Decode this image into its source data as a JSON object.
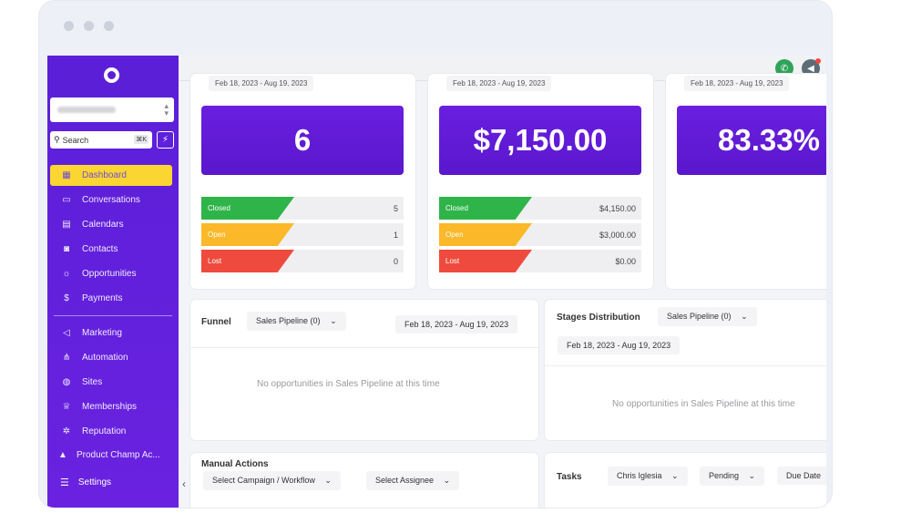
{
  "sidebar": {
    "search_label": "Search",
    "search_shortcut": "⌘K",
    "items_top": [
      {
        "label": "Dashboard",
        "icon": "dashboard-icon",
        "active": true
      },
      {
        "label": "Conversations",
        "icon": "chat-icon"
      },
      {
        "label": "Calendars",
        "icon": "calendar-icon"
      },
      {
        "label": "Contacts",
        "icon": "contacts-icon"
      },
      {
        "label": "Opportunities",
        "icon": "lightbulb-icon"
      },
      {
        "label": "Payments",
        "icon": "dollar-icon"
      }
    ],
    "items_bottom": [
      {
        "label": "Marketing",
        "icon": "megaphone-icon"
      },
      {
        "label": "Automation",
        "icon": "workflow-icon"
      },
      {
        "label": "Sites",
        "icon": "globe-icon"
      },
      {
        "label": "Memberships",
        "icon": "crown-icon"
      },
      {
        "label": "Reputation",
        "icon": "star-icon"
      },
      {
        "label": "Product Champ Ac...",
        "icon": "graduation-cap-icon"
      }
    ],
    "settings_label": "Settings"
  },
  "colors": {
    "sidebar": "#5b1fd8",
    "active": "#fbd531",
    "closed": "#2fb44a",
    "open": "#fbb828",
    "lost": "#ee4b3e",
    "bignum": "#6a1fe0"
  },
  "cards": [
    {
      "date": "Feb 18, 2023 - Aug 19, 2023",
      "big_value": "6",
      "rows": [
        {
          "label": "Closed",
          "value": "5"
        },
        {
          "label": "Open",
          "value": "1"
        },
        {
          "label": "Lost",
          "value": "0"
        }
      ]
    },
    {
      "date": "Feb 18, 2023 - Aug 19, 2023",
      "big_value": "$7,150.00",
      "rows": [
        {
          "label": "Closed",
          "value": "$4,150.00"
        },
        {
          "label": "Open",
          "value": "$3,000.00"
        },
        {
          "label": "Lost",
          "value": "$0.00"
        }
      ]
    },
    {
      "date": "Feb 18, 2023 - Aug 19, 2023",
      "big_value": "83.33%"
    }
  ],
  "funnel": {
    "title": "Funnel",
    "pipeline": "Sales Pipeline (0)",
    "date": "Feb 18, 2023 - Aug 19, 2023",
    "empty": "No opportunities in Sales Pipeline at this time"
  },
  "stages": {
    "title": "Stages Distribution",
    "pipeline": "Sales Pipeline (0)",
    "date": "Feb 18, 2023 - Aug 19, 2023",
    "empty": "No opportunities in Sales Pipeline at this time"
  },
  "manual_actions": {
    "title": "Manual Actions",
    "campaign": "Select Campaign / Workflow",
    "assignee": "Select Assignee"
  },
  "tasks": {
    "title": "Tasks",
    "user": "Chris Iglesia",
    "status": "Pending",
    "sort": "Due Date"
  }
}
